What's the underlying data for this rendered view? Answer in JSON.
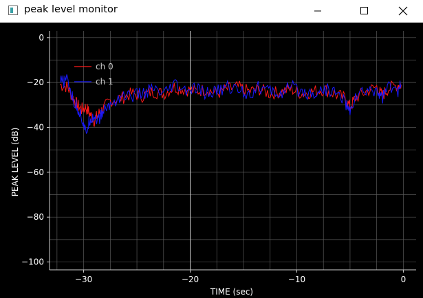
{
  "window": {
    "title": "peak level monitor",
    "controls": [
      "minimize-icon",
      "maximize-icon",
      "close-icon"
    ]
  },
  "colors": {
    "background": "#000000",
    "grid": "#5a5a5a",
    "axis": "#d0d0d0",
    "ch0": "#ff1a1a",
    "ch1": "#1a1aff"
  },
  "chart_data": {
    "type": "line",
    "xlabel": "TIME (sec)",
    "ylabel": "PEAK LEVEL (dB)",
    "xlim": [
      -33.2,
      1.2
    ],
    "ylim": [
      -103.5,
      3
    ],
    "xticks": [
      -30,
      -20,
      -10,
      0
    ],
    "xtick_labels": [
      "−30",
      "−20",
      "−10",
      "0"
    ],
    "yticks": [
      0,
      -20,
      -40,
      -60,
      -80,
      -100
    ],
    "ytick_labels": [
      "0",
      "−20",
      "−40",
      "−60",
      "−80",
      "−100"
    ],
    "minor_grid_step_x": 2.5,
    "minor_grid_step_y": 10,
    "grid": true,
    "legend": {
      "position": "top-left"
    },
    "series": [
      {
        "name": "ch 0",
        "color": "#ff1a1a",
        "x": [
          -32.2,
          -31.5,
          -31.0,
          -30.6,
          -30.2,
          -29.8,
          -29.4,
          -29.0,
          -28.6,
          -28.2,
          -27.5,
          -26.5,
          -25.5,
          -24.5,
          -23.5,
          -22.5,
          -21.5,
          -20.5,
          -19.5,
          -18.5,
          -17.5,
          -16.5,
          -15.5,
          -14.5,
          -13.5,
          -12.5,
          -11.5,
          -10.5,
          -9.5,
          -8.5,
          -7.5,
          -6.5,
          -5.5,
          -5.0,
          -4.5,
          -3.5,
          -2.5,
          -2.0,
          -1.5,
          -0.5,
          -0.2
        ],
        "y": [
          -21,
          -22,
          -27,
          -30,
          -32,
          -31,
          -34,
          -37,
          -34,
          -32,
          -28,
          -27,
          -25,
          -26,
          -24,
          -25,
          -22,
          -23,
          -24,
          -23,
          -25,
          -23,
          -22,
          -24,
          -23,
          -25,
          -24,
          -23,
          -25,
          -24,
          -23,
          -25,
          -27,
          -31,
          -27,
          -24,
          -22,
          -26,
          -23,
          -21,
          -21
        ]
      },
      {
        "name": "ch 1",
        "color": "#1a1aff",
        "x": [
          -32.2,
          -31.5,
          -31.0,
          -30.6,
          -30.2,
          -29.8,
          -29.4,
          -29.0,
          -28.6,
          -28.2,
          -27.5,
          -26.5,
          -25.5,
          -24.5,
          -23.5,
          -22.5,
          -21.5,
          -20.5,
          -19.5,
          -18.5,
          -17.5,
          -16.5,
          -15.5,
          -14.5,
          -13.5,
          -12.5,
          -11.5,
          -10.5,
          -9.5,
          -8.5,
          -7.5,
          -6.5,
          -5.5,
          -5.0,
          -4.5,
          -3.5,
          -2.5,
          -2.0,
          -1.5,
          -0.5,
          -0.2
        ],
        "y": [
          -20,
          -19,
          -28,
          -31,
          -35,
          -43,
          -36,
          -35,
          -37,
          -33,
          -30,
          -26,
          -26,
          -25,
          -23,
          -26,
          -21,
          -24,
          -23,
          -25,
          -24,
          -22,
          -23,
          -25,
          -22,
          -24,
          -25,
          -22,
          -24,
          -25,
          -23,
          -24,
          -28,
          -34,
          -26,
          -24,
          -23,
          -27,
          -22,
          -24,
          -21
        ]
      }
    ]
  }
}
